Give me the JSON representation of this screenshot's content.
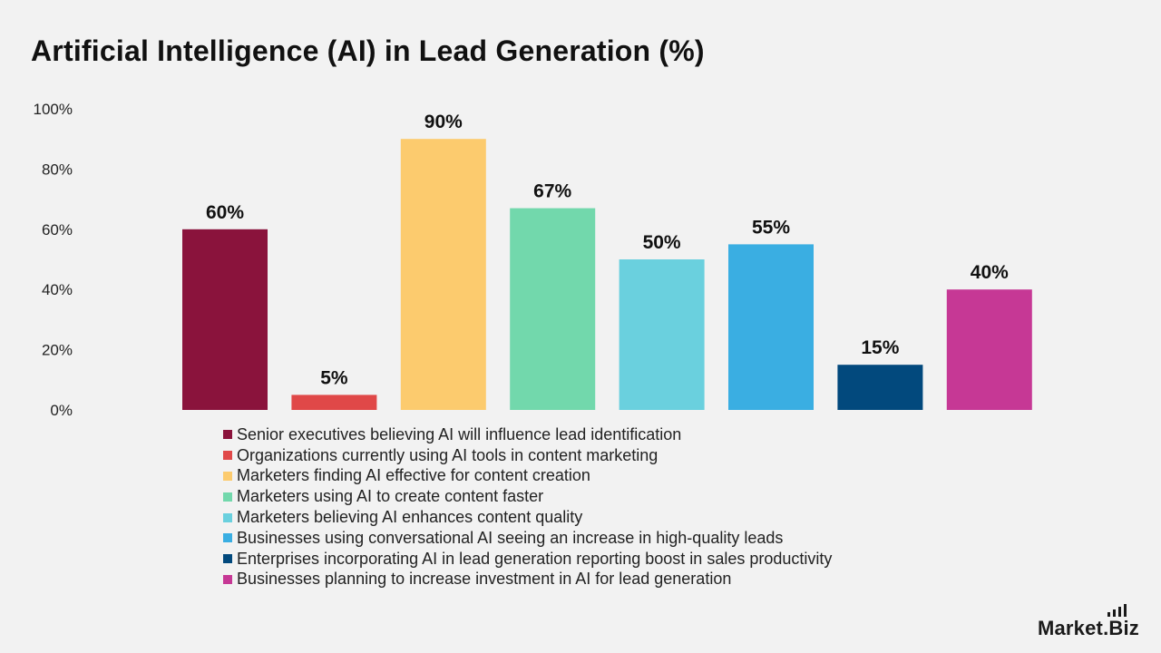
{
  "title": "Artificial Intelligence (AI) in Lead Generation (%)",
  "brand": {
    "name": "Market.Biz",
    "logo_icon": "bar-chart-icon"
  },
  "chart_data": {
    "type": "bar",
    "title": "Artificial Intelligence (AI) in Lead Generation (%)",
    "xlabel": "",
    "ylabel": "",
    "ylim": [
      0,
      100
    ],
    "yticks": [
      0,
      20,
      40,
      60,
      80,
      100
    ],
    "ytick_labels": [
      "0%",
      "20%",
      "40%",
      "60%",
      "80%",
      "100%"
    ],
    "grid": false,
    "legend_position": "bottom",
    "categories": [
      "Senior executives believing AI will influence lead identification",
      "Organizations currently using AI tools in content marketing",
      "Marketers finding AI effective for content creation",
      "Marketers using AI to create content faster",
      "Marketers believing AI enhances content quality",
      "Businesses using conversational AI seeing an increase in high-quality leads",
      "Enterprises incorporating AI in lead generation reporting boost in sales productivity",
      "Businesses planning to increase investment in AI for lead generation"
    ],
    "values": [
      60,
      5,
      90,
      67,
      50,
      55,
      15,
      40
    ],
    "data_labels": [
      "60%",
      "5%",
      "90%",
      "67%",
      "50%",
      "55%",
      "15%",
      "40%"
    ],
    "colors": [
      "#8a133c",
      "#e04848",
      "#fccb6e",
      "#72d8ac",
      "#6ad0de",
      "#3aaee2",
      "#02497d",
      "#c63895"
    ]
  }
}
